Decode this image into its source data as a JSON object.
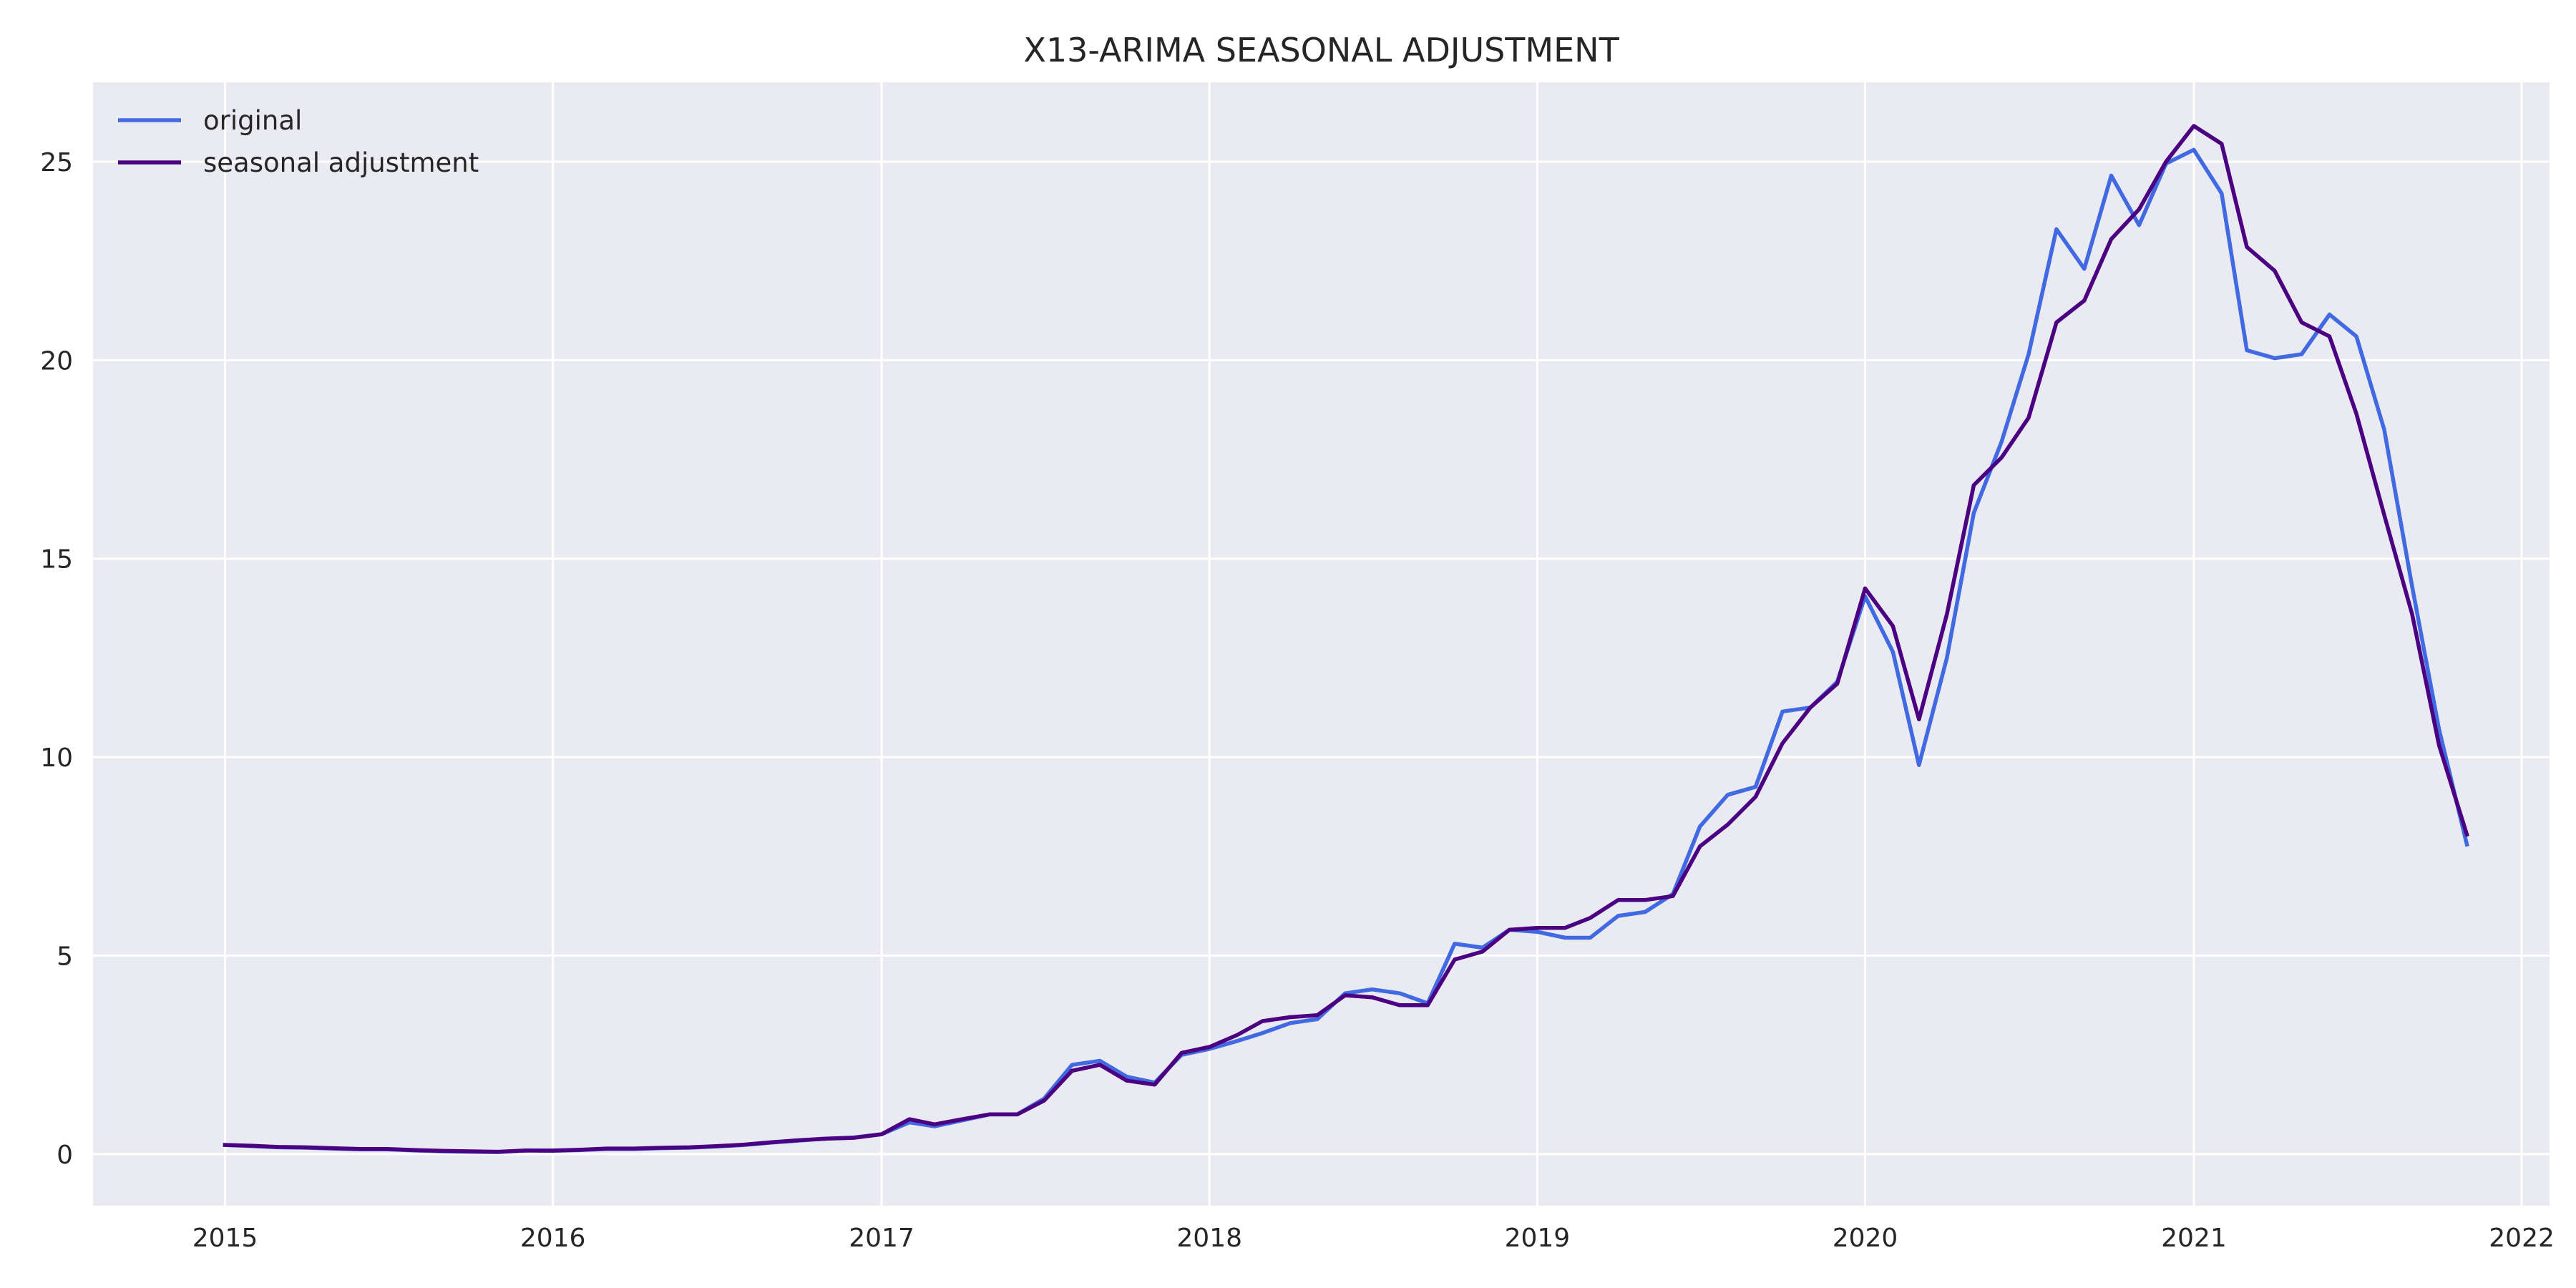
{
  "chart_data": {
    "type": "line",
    "title": "X13-ARIMA SEASONAL ADJUSTMENT",
    "xlabel": "",
    "ylabel": "",
    "x_axis": "date",
    "xlim": [
      "2014-08-07",
      "2022-02-01"
    ],
    "ylim": [
      -1.3,
      27.0
    ],
    "x_ticks": [
      "2015",
      "2016",
      "2017",
      "2018",
      "2019",
      "2020",
      "2021",
      "2022"
    ],
    "y_ticks": [
      0,
      5,
      10,
      15,
      20,
      25
    ],
    "grid": true,
    "legend": "top-left",
    "background": "#eaeaf2",
    "gridColor": "#ffffff",
    "x": [
      "2015-01",
      "2015-02",
      "2015-03",
      "2015-04",
      "2015-05",
      "2015-06",
      "2015-07",
      "2015-08",
      "2015-09",
      "2015-10",
      "2015-11",
      "2015-12",
      "2016-01",
      "2016-02",
      "2016-03",
      "2016-04",
      "2016-05",
      "2016-06",
      "2016-07",
      "2016-08",
      "2016-09",
      "2016-10",
      "2016-11",
      "2016-12",
      "2017-01",
      "2017-02",
      "2017-03",
      "2017-04",
      "2017-05",
      "2017-06",
      "2017-07",
      "2017-08",
      "2017-09",
      "2017-10",
      "2017-11",
      "2017-12",
      "2018-01",
      "2018-02",
      "2018-03",
      "2018-04",
      "2018-05",
      "2018-06",
      "2018-07",
      "2018-08",
      "2018-09",
      "2018-10",
      "2018-11",
      "2018-12",
      "2019-01",
      "2019-02",
      "2019-03",
      "2019-04",
      "2019-05",
      "2019-06",
      "2019-07",
      "2019-08",
      "2019-09",
      "2019-10",
      "2019-11",
      "2019-12",
      "2020-01",
      "2020-02",
      "2020-03",
      "2020-04",
      "2020-05",
      "2020-06",
      "2020-07",
      "2020-08",
      "2020-09",
      "2020-10",
      "2020-11",
      "2020-12",
      "2021-01",
      "2021-02",
      "2021-03",
      "2021-04",
      "2021-05",
      "2021-06",
      "2021-07",
      "2021-08",
      "2021-09",
      "2021-10",
      "2021-11"
    ],
    "series": [
      {
        "name": "original",
        "color": "#4169e1",
        "values": [
          0.23,
          0.2,
          0.17,
          0.16,
          0.14,
          0.12,
          0.12,
          0.09,
          0.07,
          0.06,
          0.05,
          0.09,
          0.08,
          0.1,
          0.13,
          0.13,
          0.15,
          0.16,
          0.19,
          0.23,
          0.29,
          0.34,
          0.39,
          0.42,
          0.5,
          0.8,
          0.7,
          0.85,
          1.0,
          1.0,
          1.4,
          2.25,
          2.35,
          1.95,
          1.8,
          2.5,
          2.65,
          2.85,
          3.05,
          3.3,
          3.4,
          4.05,
          4.15,
          4.05,
          3.8,
          5.3,
          5.2,
          5.65,
          5.6,
          5.45,
          5.45,
          6.0,
          6.1,
          6.55,
          8.25,
          9.05,
          9.25,
          11.15,
          11.25,
          11.9,
          14.05,
          12.65,
          9.8,
          12.5,
          16.15,
          17.95,
          20.15,
          23.3,
          22.3,
          24.65,
          23.4,
          24.95,
          25.3,
          24.2,
          20.25,
          20.05,
          20.15,
          21.15,
          20.6,
          18.25,
          14.3,
          10.7,
          7.8
        ]
      },
      {
        "name": "seasonal adjustment",
        "color": "#4b0082",
        "values": [
          0.23,
          0.21,
          0.18,
          0.17,
          0.15,
          0.13,
          0.13,
          0.1,
          0.08,
          0.07,
          0.06,
          0.09,
          0.09,
          0.11,
          0.14,
          0.14,
          0.16,
          0.17,
          0.2,
          0.24,
          0.3,
          0.35,
          0.39,
          0.41,
          0.5,
          0.88,
          0.75,
          0.88,
          1.0,
          1.0,
          1.35,
          2.1,
          2.25,
          1.85,
          1.75,
          2.55,
          2.7,
          3.0,
          3.35,
          3.45,
          3.5,
          4.0,
          3.95,
          3.75,
          3.75,
          4.9,
          5.1,
          5.65,
          5.7,
          5.7,
          5.95,
          6.4,
          6.4,
          6.5,
          7.75,
          8.3,
          9.0,
          10.35,
          11.25,
          11.85,
          14.25,
          13.3,
          10.95,
          13.6,
          16.85,
          17.55,
          18.55,
          20.95,
          21.5,
          23.05,
          23.8,
          25.0,
          25.9,
          25.45,
          22.85,
          22.25,
          20.95,
          20.6,
          18.65,
          16.1,
          13.6,
          10.3,
          8.05
        ]
      }
    ]
  }
}
